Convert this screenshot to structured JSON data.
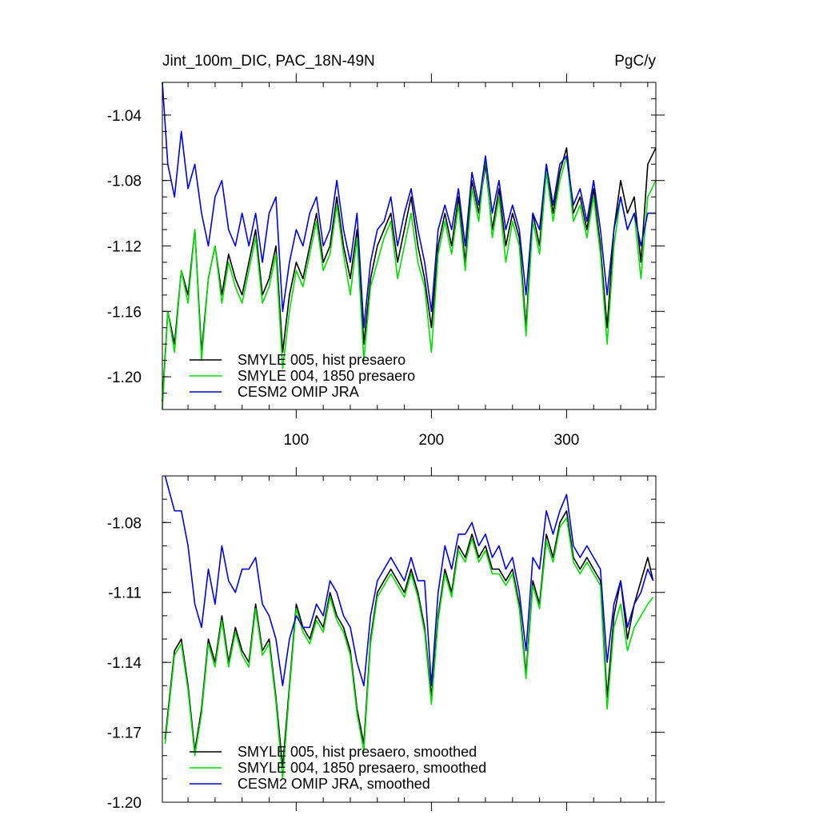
{
  "chart_data": [
    {
      "type": "line",
      "title": "Jint_100m_DIC, PAC_18N-49N",
      "units": "PgC/y",
      "xlabel": "",
      "ylabel": "",
      "xlim": [
        1,
        366
      ],
      "ylim": [
        -1.22,
        -1.02
      ],
      "xticks": [
        100,
        200,
        300
      ],
      "xtick_labels": [
        "100",
        "200",
        "300"
      ],
      "yticks": [
        -1.04,
        -1.08,
        -1.12,
        -1.16,
        -1.2
      ],
      "ytick_labels": [
        "-1.04",
        "-1.08",
        "-1.12",
        "-1.16",
        "-1.20"
      ],
      "grid": false,
      "legend_position": "bottom-left",
      "series": [
        {
          "name": "SMYLE 005, hist presaero",
          "color": "#000000",
          "x": [
            1,
            5,
            10,
            15,
            20,
            25,
            30,
            35,
            40,
            45,
            50,
            55,
            60,
            65,
            70,
            75,
            80,
            85,
            90,
            95,
            100,
            105,
            110,
            115,
            120,
            125,
            130,
            135,
            140,
            145,
            150,
            155,
            160,
            165,
            170,
            175,
            180,
            185,
            190,
            195,
            200,
            205,
            210,
            215,
            220,
            225,
            230,
            235,
            240,
            245,
            250,
            255,
            260,
            265,
            270,
            275,
            280,
            285,
            290,
            295,
            300,
            305,
            310,
            315,
            320,
            325,
            330,
            335,
            340,
            345,
            350,
            355,
            360,
            366
          ],
          "values": [
            -1.215,
            -1.16,
            -1.18,
            -1.135,
            -1.15,
            -1.11,
            -1.185,
            -1.14,
            -1.12,
            -1.15,
            -1.125,
            -1.14,
            -1.15,
            -1.13,
            -1.11,
            -1.15,
            -1.14,
            -1.12,
            -1.185,
            -1.15,
            -1.13,
            -1.14,
            -1.12,
            -1.1,
            -1.13,
            -1.12,
            -1.09,
            -1.12,
            -1.14,
            -1.11,
            -1.18,
            -1.14,
            -1.12,
            -1.11,
            -1.1,
            -1.13,
            -1.11,
            -1.09,
            -1.12,
            -1.14,
            -1.17,
            -1.12,
            -1.1,
            -1.12,
            -1.09,
            -1.13,
            -1.08,
            -1.1,
            -1.07,
            -1.11,
            -1.085,
            -1.12,
            -1.1,
            -1.115,
            -1.17,
            -1.1,
            -1.12,
            -1.07,
            -1.1,
            -1.075,
            -1.06,
            -1.1,
            -1.09,
            -1.11,
            -1.085,
            -1.12,
            -1.17,
            -1.11,
            -1.08,
            -1.1,
            -1.09,
            -1.13,
            -1.07,
            -1.06
          ]
        },
        {
          "name": "SMYLE 004, 1850 presaero",
          "color": "#00e000",
          "x": [
            1,
            5,
            10,
            15,
            20,
            25,
            30,
            35,
            40,
            45,
            50,
            55,
            60,
            65,
            70,
            75,
            80,
            85,
            90,
            95,
            100,
            105,
            110,
            115,
            120,
            125,
            130,
            135,
            140,
            145,
            150,
            155,
            160,
            165,
            170,
            175,
            180,
            185,
            190,
            195,
            200,
            205,
            210,
            215,
            220,
            225,
            230,
            235,
            240,
            245,
            250,
            255,
            260,
            265,
            270,
            275,
            280,
            285,
            290,
            295,
            300,
            305,
            310,
            315,
            320,
            325,
            330,
            335,
            340,
            345,
            350,
            355,
            360,
            366
          ],
          "values": [
            -1.22,
            -1.16,
            -1.185,
            -1.135,
            -1.155,
            -1.11,
            -1.19,
            -1.14,
            -1.12,
            -1.155,
            -1.13,
            -1.145,
            -1.155,
            -1.135,
            -1.115,
            -1.155,
            -1.145,
            -1.125,
            -1.195,
            -1.16,
            -1.135,
            -1.145,
            -1.125,
            -1.105,
            -1.135,
            -1.125,
            -1.095,
            -1.125,
            -1.15,
            -1.115,
            -1.19,
            -1.145,
            -1.13,
            -1.115,
            -1.105,
            -1.14,
            -1.12,
            -1.1,
            -1.13,
            -1.145,
            -1.185,
            -1.125,
            -1.105,
            -1.125,
            -1.095,
            -1.135,
            -1.085,
            -1.105,
            -1.065,
            -1.115,
            -1.09,
            -1.13,
            -1.105,
            -1.12,
            -1.175,
            -1.105,
            -1.125,
            -1.075,
            -1.105,
            -1.08,
            -1.065,
            -1.105,
            -1.095,
            -1.115,
            -1.09,
            -1.125,
            -1.18,
            -1.12,
            -1.09,
            -1.11,
            -1.1,
            -1.14,
            -1.09,
            -1.08
          ]
        },
        {
          "name": "CESM2 OMIP JRA",
          "color": "#0000dd",
          "x": [
            1,
            5,
            10,
            15,
            20,
            25,
            30,
            35,
            40,
            45,
            50,
            55,
            60,
            65,
            70,
            75,
            80,
            85,
            90,
            95,
            100,
            105,
            110,
            115,
            120,
            125,
            130,
            135,
            140,
            145,
            150,
            155,
            160,
            165,
            170,
            175,
            180,
            185,
            190,
            195,
            200,
            205,
            210,
            215,
            220,
            225,
            230,
            235,
            240,
            245,
            250,
            255,
            260,
            265,
            270,
            275,
            280,
            285,
            290,
            295,
            300,
            305,
            310,
            315,
            320,
            325,
            330,
            335,
            340,
            345,
            350,
            355,
            360,
            366
          ],
          "values": [
            -1.02,
            -1.07,
            -1.09,
            -1.05,
            -1.085,
            -1.07,
            -1.1,
            -1.12,
            -1.09,
            -1.08,
            -1.11,
            -1.12,
            -1.1,
            -1.12,
            -1.1,
            -1.13,
            -1.1,
            -1.09,
            -1.16,
            -1.13,
            -1.11,
            -1.12,
            -1.1,
            -1.09,
            -1.12,
            -1.11,
            -1.08,
            -1.11,
            -1.13,
            -1.1,
            -1.17,
            -1.13,
            -1.11,
            -1.105,
            -1.09,
            -1.12,
            -1.1,
            -1.085,
            -1.11,
            -1.13,
            -1.16,
            -1.11,
            -1.095,
            -1.11,
            -1.085,
            -1.12,
            -1.075,
            -1.095,
            -1.065,
            -1.1,
            -1.08,
            -1.11,
            -1.095,
            -1.11,
            -1.15,
            -1.1,
            -1.11,
            -1.07,
            -1.095,
            -1.07,
            -1.065,
            -1.095,
            -1.085,
            -1.105,
            -1.08,
            -1.11,
            -1.15,
            -1.11,
            -1.09,
            -1.11,
            -1.1,
            -1.12,
            -1.1,
            -1.1
          ]
        }
      ]
    },
    {
      "type": "line",
      "title": "",
      "units": "",
      "xlabel": "",
      "ylabel": "",
      "xlim": [
        1,
        366
      ],
      "ylim": [
        -1.2,
        -1.06
      ],
      "xticks": [
        100,
        200,
        300
      ],
      "xtick_labels": [
        "",
        "",
        ""
      ],
      "yticks": [
        -1.08,
        -1.11,
        -1.14,
        -1.17,
        -1.2
      ],
      "ytick_labels": [
        "-1.08",
        "-1.11",
        "-1.14",
        "-1.17",
        "-1.20"
      ],
      "grid": false,
      "legend_position": "bottom-left",
      "series": [
        {
          "name": "SMYLE 005, hist presaero, smoothed",
          "color": "#000000",
          "x": [
            3,
            10,
            15,
            20,
            25,
            30,
            35,
            40,
            45,
            50,
            55,
            60,
            65,
            70,
            75,
            80,
            85,
            90,
            95,
            100,
            105,
            110,
            115,
            120,
            125,
            130,
            135,
            140,
            145,
            150,
            155,
            160,
            165,
            170,
            175,
            180,
            185,
            190,
            195,
            200,
            205,
            210,
            215,
            220,
            225,
            230,
            235,
            240,
            245,
            250,
            255,
            260,
            265,
            270,
            275,
            280,
            285,
            290,
            295,
            300,
            305,
            310,
            315,
            320,
            325,
            330,
            335,
            340,
            345,
            350,
            355,
            360,
            364
          ],
          "values": [
            -1.173,
            -1.135,
            -1.13,
            -1.15,
            -1.178,
            -1.16,
            -1.13,
            -1.14,
            -1.12,
            -1.14,
            -1.125,
            -1.135,
            -1.14,
            -1.115,
            -1.135,
            -1.13,
            -1.155,
            -1.185,
            -1.15,
            -1.115,
            -1.125,
            -1.13,
            -1.12,
            -1.125,
            -1.11,
            -1.12,
            -1.125,
            -1.135,
            -1.16,
            -1.175,
            -1.13,
            -1.11,
            -1.105,
            -1.1,
            -1.105,
            -1.11,
            -1.1,
            -1.11,
            -1.125,
            -1.155,
            -1.12,
            -1.1,
            -1.11,
            -1.09,
            -1.095,
            -1.085,
            -1.095,
            -1.09,
            -1.1,
            -1.1,
            -1.105,
            -1.1,
            -1.115,
            -1.145,
            -1.105,
            -1.115,
            -1.085,
            -1.095,
            -1.08,
            -1.075,
            -1.095,
            -1.1,
            -1.095,
            -1.1,
            -1.105,
            -1.155,
            -1.12,
            -1.105,
            -1.13,
            -1.115,
            -1.105,
            -1.095,
            -1.105
          ]
        },
        {
          "name": "SMYLE 004, 1850 presaero, smoothed",
          "color": "#00e000",
          "x": [
            3,
            10,
            15,
            20,
            25,
            30,
            35,
            40,
            45,
            50,
            55,
            60,
            65,
            70,
            75,
            80,
            85,
            90,
            95,
            100,
            105,
            110,
            115,
            120,
            125,
            130,
            135,
            140,
            145,
            150,
            155,
            160,
            165,
            170,
            175,
            180,
            185,
            190,
            195,
            200,
            205,
            210,
            215,
            220,
            225,
            230,
            235,
            240,
            245,
            250,
            255,
            260,
            265,
            270,
            275,
            280,
            285,
            290,
            295,
            300,
            305,
            310,
            315,
            320,
            325,
            330,
            335,
            340,
            345,
            350,
            355,
            360,
            364
          ],
          "values": [
            -1.175,
            -1.137,
            -1.132,
            -1.152,
            -1.18,
            -1.162,
            -1.132,
            -1.142,
            -1.122,
            -1.142,
            -1.127,
            -1.137,
            -1.142,
            -1.117,
            -1.137,
            -1.132,
            -1.157,
            -1.19,
            -1.152,
            -1.117,
            -1.127,
            -1.132,
            -1.122,
            -1.127,
            -1.112,
            -1.122,
            -1.127,
            -1.137,
            -1.162,
            -1.178,
            -1.132,
            -1.112,
            -1.107,
            -1.102,
            -1.107,
            -1.112,
            -1.102,
            -1.112,
            -1.127,
            -1.158,
            -1.122,
            -1.102,
            -1.112,
            -1.092,
            -1.097,
            -1.087,
            -1.097,
            -1.092,
            -1.102,
            -1.102,
            -1.107,
            -1.102,
            -1.117,
            -1.147,
            -1.107,
            -1.117,
            -1.088,
            -1.097,
            -1.082,
            -1.078,
            -1.097,
            -1.102,
            -1.097,
            -1.102,
            -1.107,
            -1.16,
            -1.125,
            -1.115,
            -1.135,
            -1.125,
            -1.12,
            -1.115,
            -1.112
          ]
        },
        {
          "name": "CESM2 OMIP JRA, smoothed",
          "color": "#0000dd",
          "x": [
            3,
            10,
            15,
            20,
            25,
            30,
            35,
            40,
            45,
            50,
            55,
            60,
            65,
            70,
            75,
            80,
            85,
            90,
            95,
            100,
            105,
            110,
            115,
            120,
            125,
            130,
            135,
            140,
            145,
            150,
            155,
            160,
            165,
            170,
            175,
            180,
            185,
            190,
            195,
            200,
            205,
            210,
            215,
            220,
            225,
            230,
            235,
            240,
            245,
            250,
            255,
            260,
            265,
            270,
            275,
            280,
            285,
            290,
            295,
            300,
            305,
            310,
            315,
            320,
            325,
            330,
            335,
            340,
            345,
            350,
            355,
            360,
            364
          ],
          "values": [
            -1.06,
            -1.075,
            -1.075,
            -1.09,
            -1.115,
            -1.125,
            -1.1,
            -1.115,
            -1.09,
            -1.105,
            -1.11,
            -1.1,
            -1.1,
            -1.095,
            -1.115,
            -1.12,
            -1.13,
            -1.15,
            -1.13,
            -1.12,
            -1.125,
            -1.125,
            -1.115,
            -1.12,
            -1.105,
            -1.11,
            -1.12,
            -1.125,
            -1.14,
            -1.15,
            -1.12,
            -1.105,
            -1.1,
            -1.095,
            -1.1,
            -1.105,
            -1.095,
            -1.105,
            -1.105,
            -1.15,
            -1.11,
            -1.09,
            -1.1,
            -1.085,
            -1.085,
            -1.08,
            -1.09,
            -1.085,
            -1.095,
            -1.09,
            -1.1,
            -1.095,
            -1.11,
            -1.135,
            -1.095,
            -1.1,
            -1.075,
            -1.085,
            -1.075,
            -1.068,
            -1.09,
            -1.095,
            -1.09,
            -1.095,
            -1.1,
            -1.14,
            -1.115,
            -1.105,
            -1.125,
            -1.115,
            -1.11,
            -1.1,
            -1.105
          ]
        }
      ]
    }
  ]
}
